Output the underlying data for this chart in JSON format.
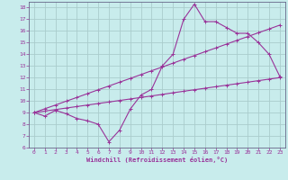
{
  "xlabel": "Windchill (Refroidissement éolien,°C)",
  "ylabel": "",
  "bg_color": "#c8ecec",
  "line_color": "#993399",
  "grid_color": "#aacccc",
  "spine_color": "#336699",
  "xlim": [
    -0.5,
    23.5
  ],
  "ylim": [
    6,
    18.5
  ],
  "xticks": [
    0,
    1,
    2,
    3,
    4,
    5,
    6,
    7,
    8,
    9,
    10,
    11,
    12,
    13,
    14,
    15,
    16,
    17,
    18,
    19,
    20,
    21,
    22,
    23
  ],
  "yticks": [
    6,
    7,
    8,
    9,
    10,
    11,
    12,
    13,
    14,
    15,
    16,
    17,
    18
  ],
  "line1_x": [
    0,
    1,
    2,
    3,
    4,
    5,
    6,
    7,
    8,
    9,
    10,
    11,
    12,
    13,
    14,
    15,
    16,
    17,
    18,
    19,
    20,
    21,
    22,
    23
  ],
  "line1_y": [
    9.0,
    8.7,
    9.2,
    8.9,
    8.5,
    8.3,
    8.0,
    6.5,
    7.5,
    9.3,
    10.5,
    11.0,
    13.0,
    14.0,
    17.0,
    18.3,
    16.8,
    16.8,
    16.3,
    15.8,
    15.8,
    15.0,
    14.0,
    12.1
  ],
  "line2_x": [
    0,
    1,
    2,
    3,
    4,
    5,
    6,
    7,
    8,
    9,
    10,
    11,
    12,
    13,
    14,
    15,
    16,
    17,
    18,
    19,
    20,
    21,
    22,
    23
  ],
  "line2_y": [
    9.0,
    9.13,
    9.26,
    9.39,
    9.52,
    9.65,
    9.78,
    9.91,
    10.04,
    10.17,
    10.3,
    10.43,
    10.56,
    10.7,
    10.83,
    10.96,
    11.09,
    11.22,
    11.35,
    11.48,
    11.61,
    11.74,
    11.87,
    12.0
  ],
  "line3_x": [
    0,
    1,
    2,
    3,
    4,
    5,
    6,
    7,
    8,
    9,
    10,
    11,
    12,
    13,
    14,
    15,
    16,
    17,
    18,
    19,
    20,
    21,
    22,
    23
  ],
  "line3_y": [
    9.0,
    9.33,
    9.65,
    9.98,
    10.3,
    10.63,
    10.96,
    11.28,
    11.61,
    11.93,
    12.26,
    12.59,
    12.91,
    13.24,
    13.57,
    13.89,
    14.22,
    14.54,
    14.87,
    15.2,
    15.52,
    15.85,
    16.17,
    16.5
  ]
}
